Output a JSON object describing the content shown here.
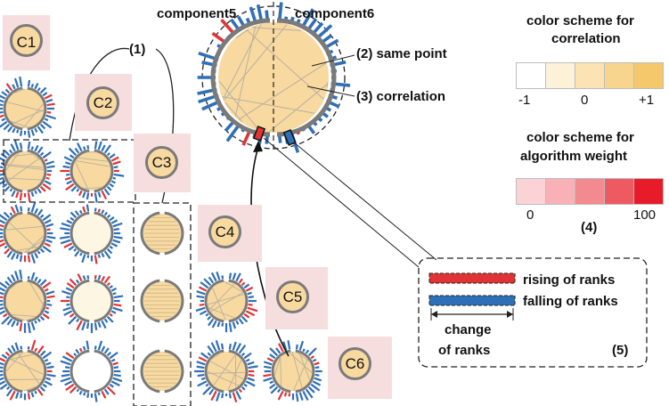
{
  "title_left": "component5",
  "title_right": "component6",
  "annotation_1": "(1)",
  "annotation_2": "(2) same point",
  "annotation_3": "(3) correlation",
  "diag_labels": [
    "C1",
    "C2",
    "C3",
    "C4",
    "C5",
    "C6"
  ],
  "corr_scheme": {
    "title_line1": "color scheme for",
    "title_line2": "correlation",
    "ticks": [
      "-1",
      "0",
      "+1"
    ],
    "colors": [
      "#ffffff",
      "#fdf1d8",
      "#fbe3b3",
      "#f8d58e",
      "#f5c86c"
    ]
  },
  "weight_scheme": {
    "title_line1": "color scheme for",
    "title_line2": "algorithm weight",
    "ticks": [
      "0",
      "100"
    ],
    "note": "(4)",
    "colors": [
      "#fbd3d6",
      "#f8b2b7",
      "#f38a90",
      "#ee5a62",
      "#e81b2a"
    ]
  },
  "legend": {
    "rising": "rising of ranks",
    "falling": "falling of ranks",
    "change_line1": "change",
    "change_line2": "of ranks",
    "note": "(5)"
  },
  "colors": {
    "cell_fill": "#f8d9a0",
    "ring": "#7a7a7a",
    "bar_blue": "#2f6fb7",
    "bar_red": "#e03434",
    "diag_bg": "#f6dede"
  }
}
